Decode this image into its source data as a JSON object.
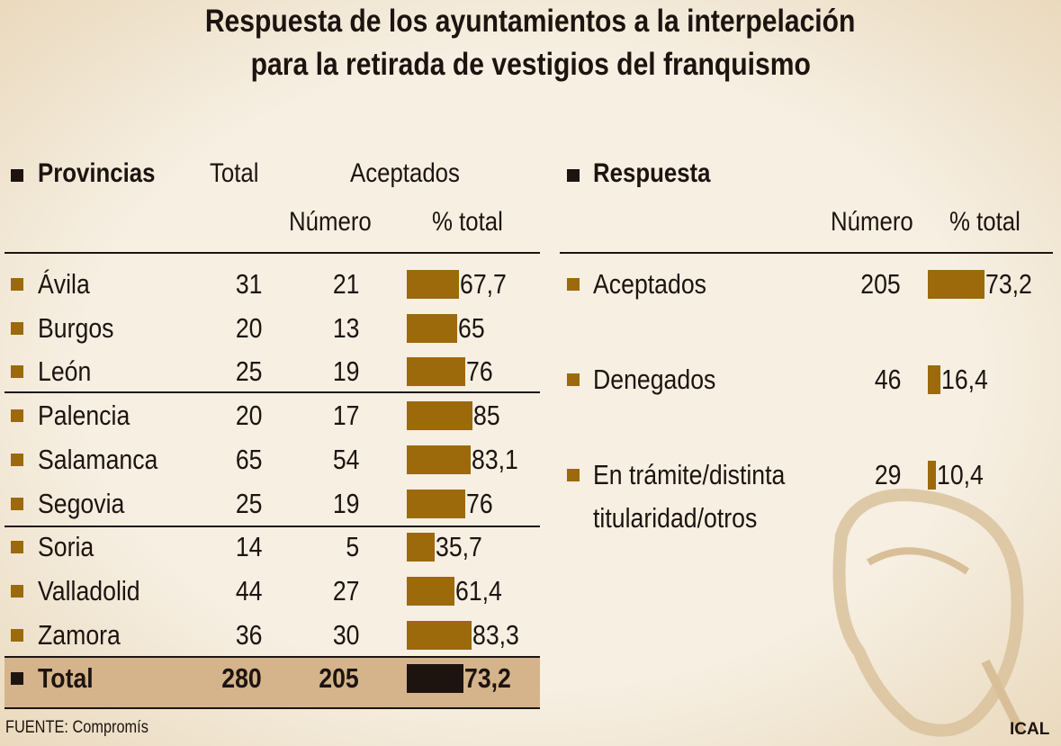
{
  "title_line1": "Respuesta de los ayuntamientos a la interpelación",
  "title_line2": "para la retirada de vestigios del franquismo",
  "left": {
    "heading": "Provincias",
    "col_total": "Total",
    "col_aceptados": "Aceptados",
    "col_numero": "Número",
    "col_pct": "% total",
    "rows": [
      {
        "name": "Ávila",
        "total": "31",
        "numero": "21",
        "pct": "67,7",
        "value": 67.7
      },
      {
        "name": "Burgos",
        "total": "20",
        "numero": "13",
        "pct": "65",
        "value": 65
      },
      {
        "name": "León",
        "total": "25",
        "numero": "19",
        "pct": "76",
        "value": 76
      },
      {
        "name": "Palencia",
        "total": "20",
        "numero": "17",
        "pct": "85",
        "value": 85
      },
      {
        "name": "Salamanca",
        "total": "65",
        "numero": "54",
        "pct": "83,1",
        "value": 83.1
      },
      {
        "name": "Segovia",
        "total": "25",
        "numero": "19",
        "pct": "76",
        "value": 76
      },
      {
        "name": "Soria",
        "total": "14",
        "numero": "5",
        "pct": "35,7",
        "value": 35.7
      },
      {
        "name": "Valladolid",
        "total": "44",
        "numero": "27",
        "pct": "61,4",
        "value": 61.4
      },
      {
        "name": "Zamora",
        "total": "36",
        "numero": "30",
        "pct": "83,3",
        "value": 83.3
      }
    ],
    "total_row": {
      "name": "Total",
      "total": "280",
      "numero": "205",
      "pct": "73,2",
      "value": 73.2
    }
  },
  "right": {
    "heading": "Respuesta",
    "col_numero": "Número",
    "col_pct": "% total",
    "rows": [
      {
        "name": "Aceptados",
        "name2": "",
        "numero": "205",
        "pct": "73,2",
        "value": 73.2
      },
      {
        "name": "Denegados",
        "name2": "",
        "numero": "46",
        "pct": "16,4",
        "value": 16.4
      },
      {
        "name": "En trámite/distinta",
        "name2": "titularidad/otros",
        "numero": "29",
        "pct": "10,4",
        "value": 10.4
      }
    ]
  },
  "source": "FUENTE: Compromís",
  "credit": "ICAL",
  "colors": {
    "bar": "#9c6a0a",
    "total_bar": "#1d1410",
    "total_band": "#d5b48c",
    "background": "#f3ebdc"
  },
  "chart_data": {
    "type": "table",
    "columns": [
      "Provincias",
      "Total",
      "Aceptados Número",
      "Aceptados % total"
    ],
    "categories": [
      "Ávila",
      "Burgos",
      "León",
      "Palencia",
      "Salamanca",
      "Segovia",
      "Soria",
      "Valladolid",
      "Zamora",
      "Total"
    ],
    "series": [
      {
        "name": "Total",
        "values": [
          31,
          20,
          25,
          20,
          65,
          25,
          14,
          44,
          36,
          280
        ]
      },
      {
        "name": "Número",
        "values": [
          21,
          13,
          19,
          17,
          54,
          19,
          5,
          27,
          30,
          205
        ]
      },
      {
        "name": "% total",
        "values": [
          67.7,
          65,
          76,
          85,
          83.1,
          76,
          35.7,
          61.4,
          83.3,
          73.2
        ]
      }
    ],
    "respuesta": {
      "categories": [
        "Aceptados",
        "Denegados",
        "En trámite/distinta titularidad/otros"
      ],
      "numero": [
        205,
        46,
        29
      ],
      "pct": [
        73.2,
        16.4,
        10.4
      ]
    }
  }
}
